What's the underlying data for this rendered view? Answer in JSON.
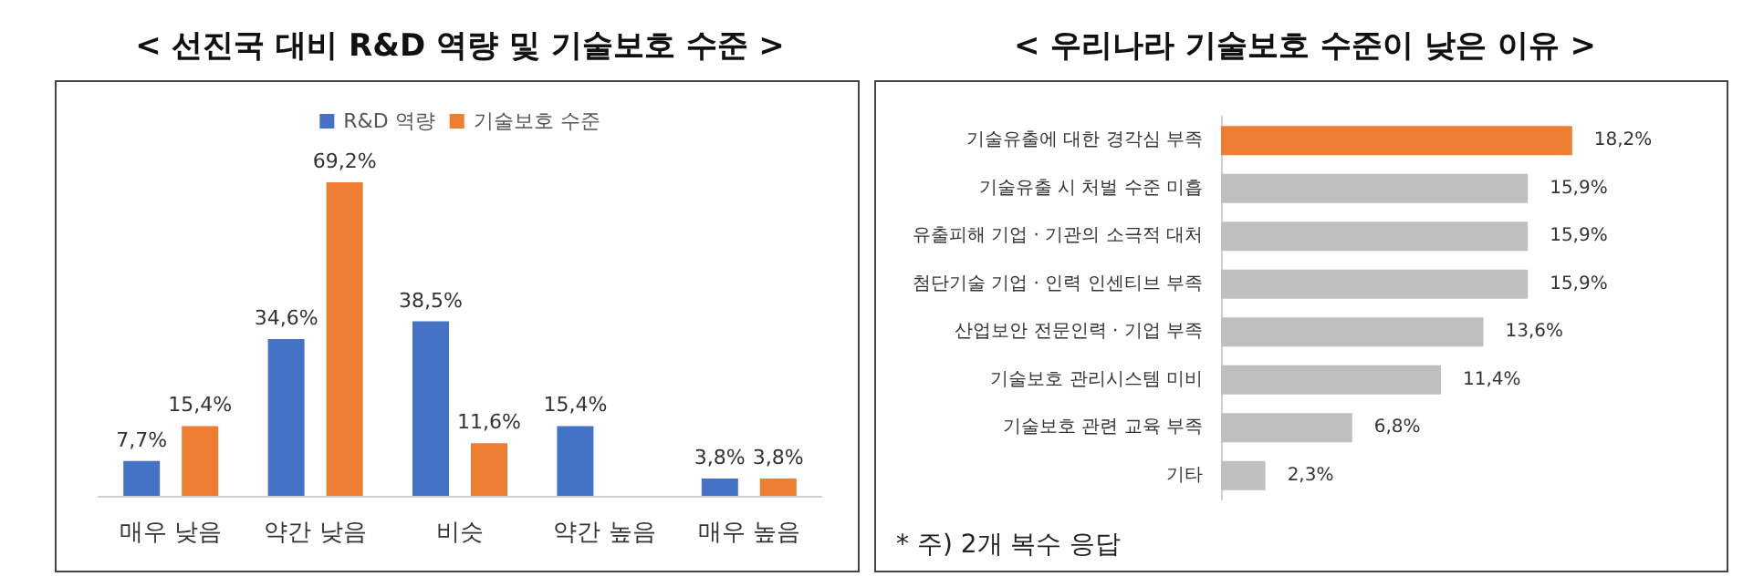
{
  "chart_data": [
    {
      "type": "bar",
      "title": "< 선진국 대비 R&D 역량 및 기술보호 수준 >",
      "categories": [
        "매우 낮음",
        "약간 낮음",
        "비슷",
        "약간 높음",
        "매우 높음"
      ],
      "series": [
        {
          "name": "R&D 역량",
          "color": "#4472c4",
          "values": [
            7.7,
            34.6,
            38.5,
            15.4,
            3.8
          ],
          "value_labels": [
            "7,7%",
            "34,6%",
            "38,5%",
            "15,4%",
            "3,8%"
          ]
        },
        {
          "name": "기술보호 수준",
          "color": "#ed7d31",
          "values": [
            15.4,
            69.2,
            11.6,
            null,
            3.8
          ],
          "value_labels": [
            "15,4%",
            "69,2%",
            "11,6%",
            null,
            "3,8%"
          ]
        }
      ],
      "legend": "top",
      "tick_labels": "x"
    },
    {
      "type": "bar",
      "orientation": "horizontal",
      "title": "< 우리나라 기술보호 수준이 낮은 이유 >",
      "categories": [
        "기술유출에 대한 경각심 부족",
        "기술유출 시 처벌 수준 미흡",
        "유출피해 기업 · 기관의 소극적 대처",
        "첨단기술 기업 · 인력 인센티브 부족",
        "산업보안 전문인력 · 기업 부족",
        "기술보호 관리시스템 미비",
        "기술보호 관련 교육 부족",
        "기타"
      ],
      "values": [
        18.2,
        15.9,
        15.9,
        15.9,
        13.6,
        11.4,
        6.8,
        2.3
      ],
      "colors": [
        "#ed7d31",
        "#bfbfbf",
        "#bfbfbf",
        "#bfbfbf",
        "#bfbfbf",
        "#bfbfbf",
        "#bfbfbf",
        "#bfbfbf"
      ],
      "value_labels": [
        "18,2%",
        "15,9%",
        "15,9%",
        "15,9%",
        "13,6%",
        "11,4%",
        "6,8%",
        "2,3%"
      ],
      "tick_labels": "y",
      "annotations": [
        "* 주) 2개 복수 응답"
      ]
    }
  ]
}
